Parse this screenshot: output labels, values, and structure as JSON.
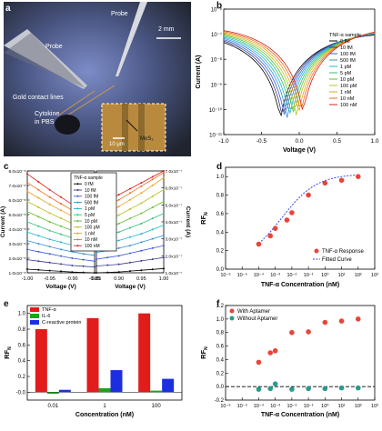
{
  "panels": {
    "a": "a",
    "b": "b",
    "c": "c",
    "d": "d",
    "e": "e",
    "f": "f"
  },
  "photo": {
    "probe_left": "Probe",
    "probe_right": "Probe",
    "scale_top": "2 mm",
    "gold_lines": "Gold contact lines",
    "cytokine": "Cytokine",
    "in_pbs": "in PBS",
    "inset_scale": "10 μm",
    "mos2": "MoS₂",
    "colors": {
      "bg": "#2b2f3d",
      "glow": "#6a79b8",
      "gold": "#c99a4e",
      "inset": "#b98a3e"
    }
  },
  "chart_data": [
    {
      "id": "b",
      "type": "line",
      "xlabel": "Voltage (V)",
      "ylabel": "Current (A)",
      "xlim": [
        -1.0,
        1.0
      ],
      "ylim_log10": [
        -11,
        -6
      ],
      "xticks": [
        "-1.0",
        "-0.5",
        "0.0",
        "0.5",
        "1.0"
      ],
      "yticks": [
        "10⁻¹¹",
        "10⁻¹⁰",
        "10⁻⁹",
        "10⁻⁸",
        "10⁻⁷",
        "10⁻⁶"
      ],
      "legend_title": "TNF-α sample",
      "legend_position": "right",
      "series": [
        {
          "name": "0 fM",
          "color": "#000000"
        },
        {
          "name": "10 fM",
          "color": "#3a3a8c"
        },
        {
          "name": "100 fM",
          "color": "#3b5bd9"
        },
        {
          "name": "500 fM",
          "color": "#2f8fd9"
        },
        {
          "name": "1 pM",
          "color": "#20b5c8"
        },
        {
          "name": "5 pM",
          "color": "#2fbf7a"
        },
        {
          "name": "10 pM",
          "color": "#5fbf2a"
        },
        {
          "name": "100 pM",
          "color": "#b8c020"
        },
        {
          "name": "1 nM",
          "color": "#e8a020"
        },
        {
          "name": "10 nM",
          "color": "#ee6a20"
        },
        {
          "name": "100 nM",
          "color": "#d8201c"
        }
      ]
    },
    {
      "id": "c",
      "type": "line",
      "xlabel": "Voltage (V)",
      "ylabel_left": "Current (A)",
      "ylabel_right": "Current (A)",
      "left_xticks": [
        "-1.00",
        "-0.95",
        "-0.90",
        "-0.85"
      ],
      "right_xticks": [
        "0.85",
        "0.90",
        "0.95",
        "1.00"
      ],
      "left_yticks": [
        "1.0x10⁻⁸",
        "2.0x10⁻⁸",
        "3.0x10⁻⁸",
        "4.0x10⁻⁸",
        "5.0x10⁻⁸",
        "6.0x10⁻⁸",
        "7.0x10⁻⁸",
        "8.0x10⁻⁸"
      ],
      "right_yticks": [
        "1.0x10⁻⁷",
        "2.0x10⁻⁷",
        "3.0x10⁻⁷",
        "4.0x10⁻⁷",
        "5.0x10⁻⁷",
        "6.0x10⁻⁷",
        "7.0x10⁻⁷"
      ],
      "left_ylim": [
        1e-08,
        8e-08
      ],
      "right_ylim": [
        1e-07,
        7e-07
      ],
      "legend_title": "TNF-α sample",
      "legend_position": "center",
      "x": [
        -1.0,
        -0.975,
        -0.95,
        -0.925,
        -0.9,
        -0.875,
        -0.85
      ],
      "x_right": [
        0.85,
        0.875,
        0.9,
        0.925,
        0.95,
        0.975,
        1.0
      ],
      "series_left": [
        {
          "name": "0 fM",
          "values": [
            1.25e-08,
            1.2e-08,
            1.15e-08,
            1.1e-08,
            1.05e-08,
            1.02e-08,
            1e-08
          ]
        },
        {
          "name": "10 fM",
          "values": [
            1.9e-08,
            1.8e-08,
            1.7e-08,
            1.6e-08,
            1.5e-08,
            1.45e-08,
            1.4e-08
          ]
        },
        {
          "name": "100 fM",
          "values": [
            2.6e-08,
            2.45e-08,
            2.3e-08,
            2.15e-08,
            2e-08,
            1.9e-08,
            1.8e-08
          ]
        },
        {
          "name": "500 fM",
          "values": [
            3.2e-08,
            3e-08,
            2.8e-08,
            2.6e-08,
            2.45e-08,
            2.3e-08,
            2.2e-08
          ]
        },
        {
          "name": "1 pM",
          "values": [
            3.8e-08,
            3.55e-08,
            3.3e-08,
            3.1e-08,
            2.9e-08,
            2.75e-08,
            2.6e-08
          ]
        },
        {
          "name": "5 pM",
          "values": [
            4.5e-08,
            4.2e-08,
            3.9e-08,
            3.65e-08,
            3.4e-08,
            3.2e-08,
            3e-08
          ]
        },
        {
          "name": "10 pM",
          "values": [
            5.2e-08,
            4.85e-08,
            4.5e-08,
            4.2e-08,
            3.9e-08,
            3.65e-08,
            3.4e-08
          ]
        },
        {
          "name": "100 pM",
          "values": [
            5.9e-08,
            5.5e-08,
            5.1e-08,
            4.75e-08,
            4.4e-08,
            4.1e-08,
            3.8e-08
          ]
        },
        {
          "name": "1 nM",
          "values": [
            6.6e-08,
            6.15e-08,
            5.7e-08,
            5.3e-08,
            4.9e-08,
            4.55e-08,
            4.2e-08
          ]
        },
        {
          "name": "10 nM",
          "values": [
            7.2e-08,
            6.7e-08,
            6.2e-08,
            5.75e-08,
            5.3e-08,
            4.95e-08,
            4.6e-08
          ]
        },
        {
          "name": "100 nM",
          "values": [
            7.8e-08,
            7.25e-08,
            6.7e-08,
            6.2e-08,
            5.7e-08,
            5.3e-08,
            4.9e-08
          ]
        }
      ],
      "series_right": [
        {
          "name": "0 fM",
          "values": [
            1e-07,
            1.02e-07,
            1.05e-07,
            1.1e-07,
            1.15e-07,
            1.2e-07,
            1.25e-07
          ]
        },
        {
          "name": "10 fM",
          "values": [
            1.4e-07,
            1.45e-07,
            1.5e-07,
            1.6e-07,
            1.7e-07,
            1.8e-07,
            1.9e-07
          ]
        },
        {
          "name": "100 fM",
          "values": [
            1.8e-07,
            1.9e-07,
            2e-07,
            2.15e-07,
            2.3e-07,
            2.45e-07,
            2.6e-07
          ]
        },
        {
          "name": "500 fM",
          "values": [
            2.2e-07,
            2.3e-07,
            2.45e-07,
            2.6e-07,
            2.8e-07,
            3e-07,
            3.2e-07
          ]
        },
        {
          "name": "1 pM",
          "values": [
            2.6e-07,
            2.75e-07,
            2.9e-07,
            3.1e-07,
            3.3e-07,
            3.55e-07,
            3.8e-07
          ]
        },
        {
          "name": "5 pM",
          "values": [
            3e-07,
            3.2e-07,
            3.4e-07,
            3.65e-07,
            3.9e-07,
            4.2e-07,
            4.5e-07
          ]
        },
        {
          "name": "10 pM",
          "values": [
            3.4e-07,
            3.65e-07,
            3.9e-07,
            4.2e-07,
            4.5e-07,
            4.85e-07,
            5.2e-07
          ]
        },
        {
          "name": "100 pM",
          "values": [
            3.8e-07,
            4.1e-07,
            4.4e-07,
            4.75e-07,
            5.1e-07,
            5.5e-07,
            5.9e-07
          ]
        },
        {
          "name": "1 nM",
          "values": [
            4.2e-07,
            4.55e-07,
            4.9e-07,
            5.3e-07,
            5.7e-07,
            6.15e-07,
            6.6e-07
          ]
        },
        {
          "name": "10 nM",
          "values": [
            4.6e-07,
            4.95e-07,
            5.3e-07,
            5.7e-07,
            6.1e-07,
            6.5e-07,
            6.9e-07
          ]
        },
        {
          "name": "100 nM",
          "values": [
            4.9e-07,
            5.25e-07,
            5.6e-07,
            5.95e-07,
            6.3e-07,
            6.65e-07,
            7e-07
          ]
        }
      ]
    },
    {
      "id": "d",
      "type": "scatter",
      "xlabel": "TNF-α Concentration (nM)",
      "ylabel": "RF",
      "ylabel_sub": "N",
      "xlim_log10": [
        -6,
        3
      ],
      "ylim": [
        0.0,
        1.1
      ],
      "xticks": [
        "10⁻⁶",
        "10⁻⁵",
        "10⁻⁴",
        "10⁻³",
        "10⁻²",
        "10⁻¹",
        "10⁰",
        "10¹",
        "10²",
        "10³"
      ],
      "yticks": [
        "0.0",
        "0.2",
        "0.4",
        "0.6",
        "0.8",
        "1.0"
      ],
      "points_log10x": [
        -4,
        -3.3,
        -3,
        -2.3,
        -2,
        -1,
        0,
        1,
        2
      ],
      "points_y": [
        0.27,
        0.36,
        0.44,
        0.53,
        0.61,
        0.8,
        0.93,
        0.96,
        1.0
      ],
      "fit_label": "Fitted Curve",
      "points_label": "TNF-α Response",
      "legend_position": "bottom-right"
    },
    {
      "id": "e",
      "type": "bar",
      "xlabel": "Concentration (nM)",
      "ylabel": "RF",
      "ylabel_sub": "N",
      "categories": [
        "0.01",
        "1",
        "100"
      ],
      "ylim": [
        -0.1,
        1.1
      ],
      "yticks": [
        "-0.0",
        "0.2",
        "0.4",
        "0.6",
        "0.8",
        "1.0"
      ],
      "series": [
        {
          "name": "TNF-α",
          "color": "#e21b1b",
          "values": [
            0.8,
            0.94,
            1.0
          ]
        },
        {
          "name": "IL-6",
          "color": "#1aa51a",
          "values": [
            -0.02,
            0.05,
            0.02
          ]
        },
        {
          "name": "C-reactive protein",
          "color": "#1c2fe0",
          "values": [
            0.03,
            0.28,
            0.17
          ]
        }
      ],
      "legend_position": "top-left"
    },
    {
      "id": "f",
      "type": "scatter",
      "xlabel": "TNF-α Concentration (nM)",
      "ylabel": "RF",
      "ylabel_sub": "N",
      "xlim_log10": [
        -6,
        3
      ],
      "ylim": [
        -0.2,
        1.2
      ],
      "xticks": [
        "10⁻⁶",
        "10⁻⁵",
        "10⁻⁴",
        "10⁻³",
        "10⁻²",
        "10⁻¹",
        "10⁰",
        "10¹",
        "10²",
        "10³"
      ],
      "yticks": [
        "-0.2",
        "0.0",
        "0.2",
        "0.4",
        "0.6",
        "0.8",
        "1.0",
        "1.2"
      ],
      "series": [
        {
          "name": "With Aptamer",
          "color": "#e8453a",
          "log10x": [
            -4,
            -3.3,
            -3,
            -2,
            -1,
            0,
            1,
            2
          ],
          "values": [
            0.36,
            0.5,
            0.53,
            0.8,
            0.81,
            0.95,
            0.97,
            1.0
          ]
        },
        {
          "name": "Without Aptamer",
          "color": "#2a9a8a",
          "log10x": [
            -4,
            -3.3,
            -3,
            -2,
            -1,
            0,
            1,
            2
          ],
          "values": [
            -0.04,
            -0.03,
            0.04,
            -0.04,
            -0.03,
            -0.03,
            -0.02,
            -0.02
          ]
        }
      ],
      "legend_position": "top-left"
    }
  ]
}
